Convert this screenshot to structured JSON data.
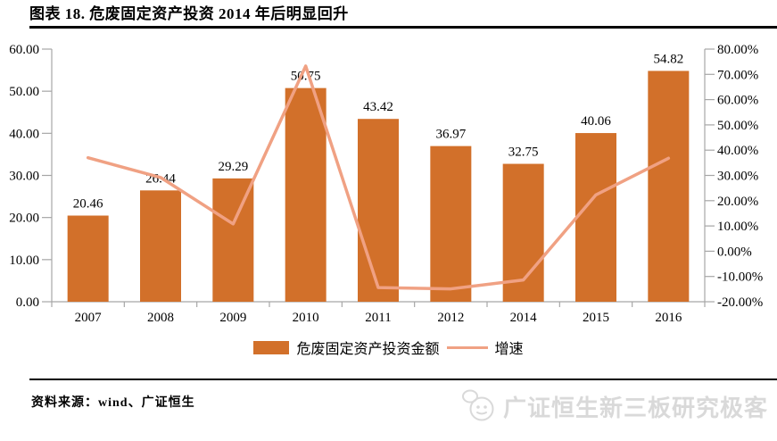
{
  "header": {
    "title": "图表 18. 危废固定资产投资 2014 年后明显回升"
  },
  "colors": {
    "bar": "#d2702a",
    "line": "#f0a183",
    "axis": "#a6a6a6",
    "label_text": "#000000",
    "title_rule": "#000000",
    "watermark": "#d9d9d9"
  },
  "chart_data": {
    "type": "bar",
    "categories": [
      "2007",
      "2008",
      "2009",
      "2010",
      "2011",
      "2012",
      "2014",
      "2015",
      "2016"
    ],
    "series": [
      {
        "name": "危废固定资产投资金额",
        "type": "bar",
        "axis": "left",
        "values": [
          20.46,
          26.44,
          29.29,
          50.75,
          43.42,
          36.97,
          32.75,
          40.06,
          54.82
        ],
        "labels": [
          "20.46",
          "26.44",
          "29.29",
          "50.75",
          "43.42",
          "36.97",
          "32.75",
          "40.06",
          "54.82"
        ],
        "color": "#d2702a"
      },
      {
        "name": "增速",
        "type": "line",
        "axis": "right",
        "values_percent": [
          37.0,
          29.2,
          10.8,
          73.3,
          -14.4,
          -14.9,
          -11.4,
          22.3,
          36.8
        ],
        "color": "#f0a183"
      }
    ],
    "left_axis": {
      "min": 0,
      "max": 60,
      "step": 10,
      "ticks": [
        "60.00",
        "50.00",
        "40.00",
        "30.00",
        "20.00",
        "10.00",
        "0.00"
      ]
    },
    "right_axis": {
      "min": -20,
      "max": 80,
      "step": 10,
      "ticks": [
        "80.00%",
        "70.00%",
        "60.00%",
        "50.00%",
        "40.00%",
        "30.00%",
        "20.00%",
        "10.00%",
        "0.00%",
        "-10.00%",
        "-20.00%"
      ]
    },
    "grid": false,
    "legend_position": "bottom"
  },
  "footer": {
    "source": "资料来源：wind、广证恒生",
    "watermark": "广证恒生新三板研究极客"
  }
}
